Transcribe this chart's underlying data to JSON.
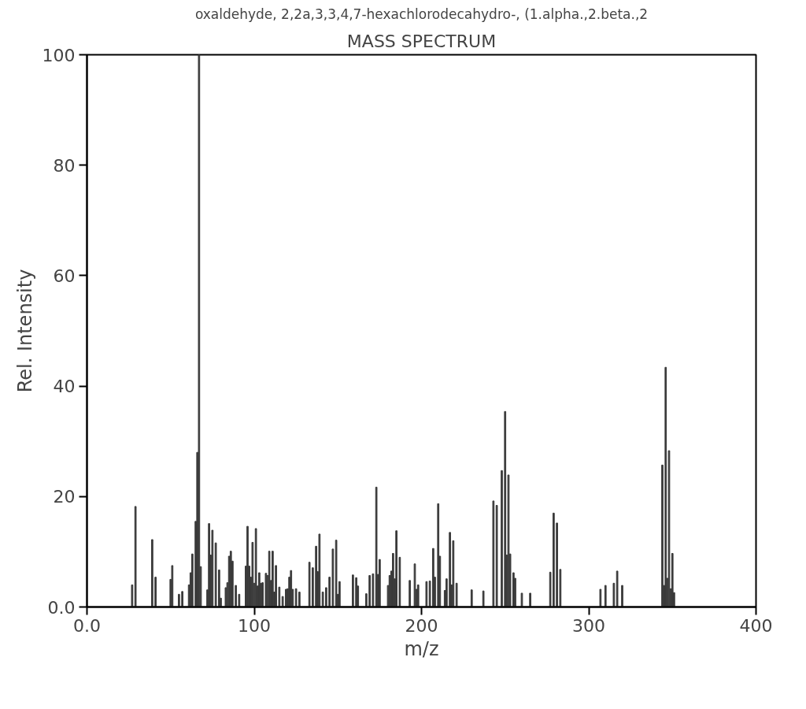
{
  "chart_data": {
    "type": "bar",
    "title": "oxaldehyde, 2,2a,3,3,4,7-hexachlorodecahydro-, (1.alpha.,2.beta.,2",
    "subtitle": "MASS SPECTRUM",
    "xlabel": "m/z",
    "ylabel": "Rel. Intensity",
    "color": "#3a3a3a",
    "x": [
      27,
      29,
      39,
      41,
      50,
      51,
      55,
      57,
      61,
      62,
      63,
      65,
      66,
      67,
      68,
      72,
      73,
      74,
      75,
      77,
      79,
      80,
      83,
      84,
      85,
      86,
      87,
      89,
      91,
      95,
      96,
      97,
      98,
      99,
      100,
      101,
      102,
      103,
      104,
      105,
      107,
      108,
      109,
      110,
      111,
      112,
      113,
      115,
      117,
      119,
      120,
      121,
      122,
      123,
      125,
      127,
      133,
      135,
      137,
      138,
      139,
      141,
      143,
      145,
      147,
      149,
      150,
      151,
      159,
      161,
      162,
      167,
      169,
      171,
      173,
      174,
      175,
      180,
      181,
      182,
      183,
      184,
      185,
      187,
      193,
      196,
      197,
      198,
      203,
      205,
      207,
      208,
      210,
      211,
      214,
      215,
      217,
      218,
      219,
      221,
      230,
      237,
      243,
      245,
      248,
      250,
      251,
      252,
      253,
      255,
      256,
      260,
      265,
      277,
      279,
      281,
      283,
      307,
      310,
      315,
      317,
      320,
      344,
      345,
      346,
      347,
      348,
      349,
      350,
      351
    ],
    "values": [
      4.0,
      18.2,
      12.2,
      5.4,
      5.0,
      7.5,
      2.3,
      2.8,
      4.0,
      6.2,
      9.6,
      15.5,
      28,
      100,
      7.3,
      3.1,
      15.1,
      9.4,
      13.9,
      11.6,
      6.7,
      1.6,
      3.5,
      4.4,
      9.2,
      10.1,
      8.3,
      3.9,
      2.3,
      7.4,
      14.6,
      7.4,
      5.4,
      11.7,
      4.3,
      14.2,
      3.8,
      6.2,
      4.3,
      4.4,
      6.1,
      5.7,
      10.1,
      4.8,
      10.1,
      2.7,
      7.5,
      3.6,
      1.9,
      3.2,
      3.3,
      5.4,
      6.6,
      3.2,
      3.3,
      2.7,
      8.1,
      7.1,
      11.0,
      6.4,
      13.2,
      2.7,
      3.5,
      5.4,
      10.5,
      12.1,
      2.3,
      4.6,
      5.8,
      5.3,
      3.8,
      2.4,
      5.7,
      6.0,
      21.7,
      5.9,
      8.6,
      3.9,
      5.7,
      6.5,
      9.7,
      5.1,
      13.8,
      9.0,
      4.8,
      7.8,
      3.2,
      4.0,
      4.6,
      4.7,
      10.6,
      5.4,
      18.7,
      9.2,
      3.0,
      5.1,
      13.5,
      4.0,
      12.0,
      4.3,
      3.1,
      2.9,
      19.2,
      18.4,
      24.7,
      35.4,
      9.4,
      23.9,
      9.6,
      6.2,
      5.2,
      2.5,
      2.5,
      6.3,
      17.0,
      15.2,
      6.8,
      3.2,
      3.9,
      4.3,
      6.5,
      3.9,
      25.7,
      3.9,
      43.4,
      5.2,
      28.3,
      3.3,
      9.7,
      2.6
    ],
    "xlim": [
      0,
      400
    ],
    "xticks": [
      {
        "value": 0,
        "label": "0.0"
      },
      100,
      200,
      300,
      400
    ],
    "ylim": [
      0,
      100
    ],
    "yticks": [
      {
        "value": 0,
        "label": "0.0"
      },
      20,
      40,
      60,
      80,
      100
    ],
    "grid": false
  }
}
